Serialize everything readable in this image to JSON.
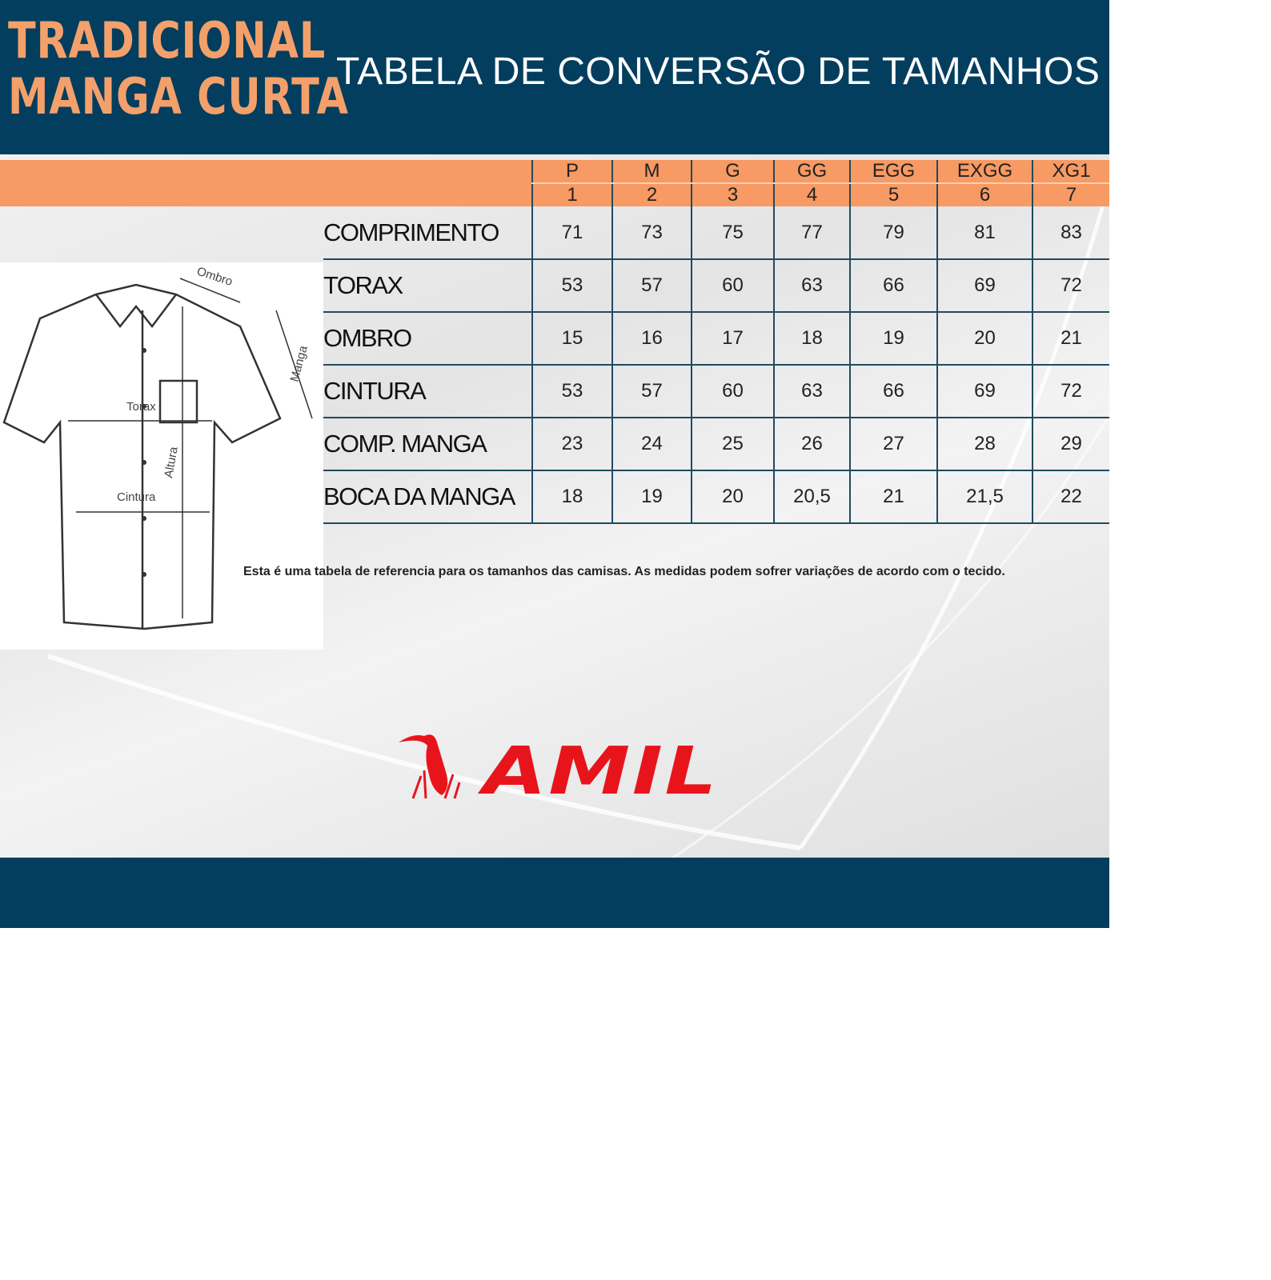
{
  "header": {
    "brand_line1": "TRADICIONAL",
    "brand_line2": "MANGA CURTA",
    "title": "TABELA DE CONVERSÃO DE TAMANHOS"
  },
  "sizes": [
    {
      "label": "P",
      "num": "1"
    },
    {
      "label": "M",
      "num": "2"
    },
    {
      "label": "G",
      "num": "3"
    },
    {
      "label": "GG",
      "num": "4"
    },
    {
      "label": "EGG",
      "num": "5"
    },
    {
      "label": "EXGG",
      "num": "6"
    },
    {
      "label": "XG1",
      "num": "7"
    }
  ],
  "rows": [
    {
      "label": "COMPRIMENTO",
      "values": [
        "71",
        "73",
        "75",
        "77",
        "79",
        "81",
        "83"
      ]
    },
    {
      "label": "TORAX",
      "values": [
        "53",
        "57",
        "60",
        "63",
        "66",
        "69",
        "72"
      ]
    },
    {
      "label": "OMBRO",
      "values": [
        "15",
        "16",
        "17",
        "18",
        "19",
        "20",
        "21"
      ]
    },
    {
      "label": "CINTURA",
      "values": [
        "53",
        "57",
        "60",
        "63",
        "66",
        "69",
        "72"
      ]
    },
    {
      "label": "COMP. MANGA",
      "values": [
        "23",
        "24",
        "25",
        "26",
        "27",
        "28",
        "29"
      ]
    },
    {
      "label": "BOCA DA MANGA",
      "values": [
        "18",
        "19",
        "20",
        "20,5",
        "21",
        "21,5",
        "22"
      ]
    }
  ],
  "diagram": {
    "ombro": "Ombro",
    "manga": "Manga",
    "torax": "Torax",
    "altura": "Altura",
    "cintura": "Cintura"
  },
  "note": "Esta é uma tabela de referencia para os tamanhos das camisas. As medidas podem sofrer variações de acordo com o tecido.",
  "logo": {
    "text": "AMIL",
    "color": "#e8141c"
  },
  "colors": {
    "navy": "#043e5e",
    "orange": "#f79a63"
  }
}
